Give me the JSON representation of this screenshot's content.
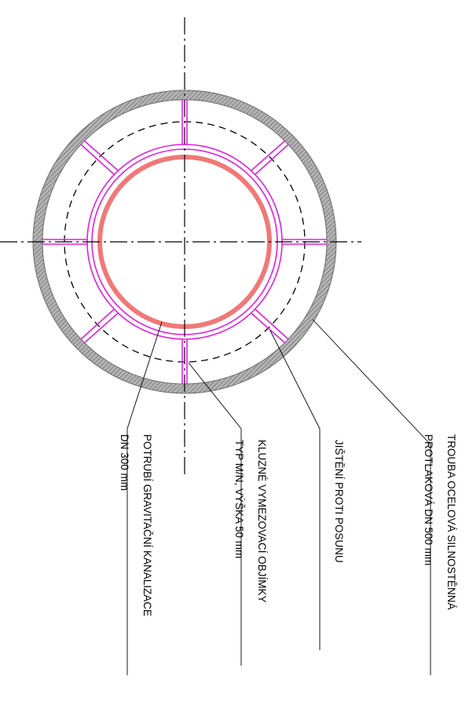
{
  "labels": {
    "steel_pipe": {
      "line1": "TROUBA OCELOVÁ SILNOSTĚNNÁ",
      "line2": "PROTLAKOVÁ DN 500 mm"
    },
    "anti_slip": {
      "line1": "JIŠTĚNÍ PROTI POSUNU"
    },
    "spacers": {
      "line1": "KLUZNÉ VYMEZOVACÍ OBJÍMKY",
      "line2": "TYP M/N, VÝŠKA 50 mm"
    },
    "sewer_pipe": {
      "line1": "POTRUBÍ GRAVITAČNÍ KANALIZACE",
      "line2": "DN 300 mm"
    }
  },
  "colors": {
    "casing": "#8a8a8a",
    "spacer": "#e020e0",
    "sewer_pipe": "#f07878",
    "centerline": "#000000",
    "leader": "#000000"
  }
}
